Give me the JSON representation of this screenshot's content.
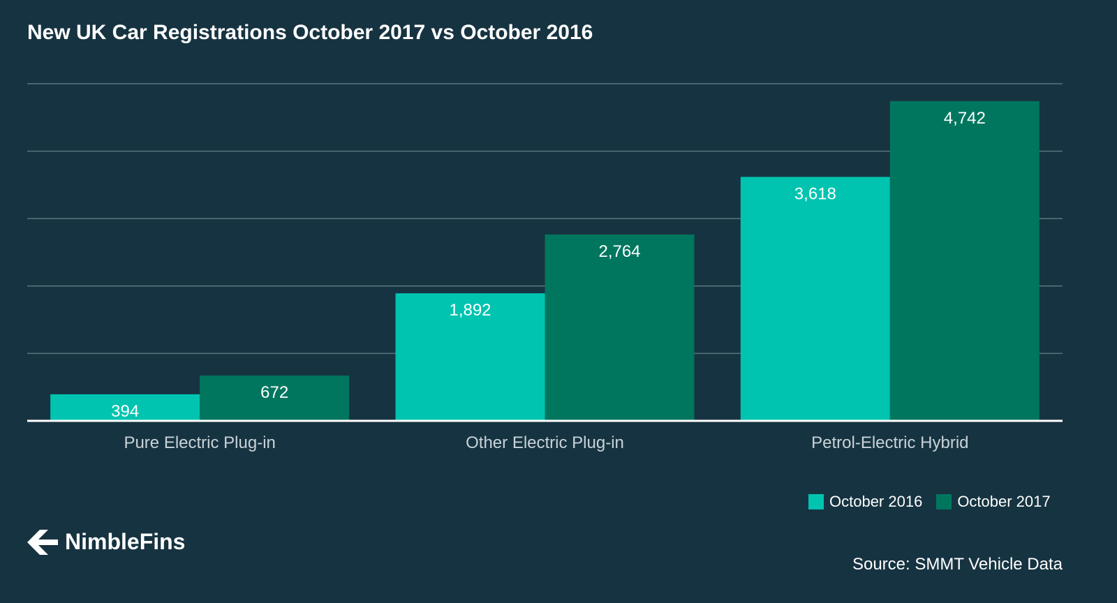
{
  "chart_data": {
    "type": "bar",
    "title": "New UK Car Registrations October 2017 vs October 2016",
    "categories": [
      "Pure Electric Plug-in",
      "Other Electric Plug-in",
      "Petrol-Electric Hybrid"
    ],
    "series": [
      {
        "name": "October 2016",
        "values": [
          394,
          1892,
          3618
        ],
        "labels": [
          "394",
          "1,892",
          "3,618"
        ],
        "color": "#00c4b0"
      },
      {
        "name": "October 2017",
        "values": [
          672,
          2764,
          4742
        ],
        "labels": [
          "672",
          "2,764",
          "4,742"
        ],
        "color": "#00765f"
      }
    ],
    "ylim": [
      0,
      5000
    ],
    "grid": true,
    "legend": "bottom-right"
  },
  "colors": {
    "background": "#163341",
    "gridline": "#5a7480",
    "axis": "#ffffff",
    "category_label": "#c9d3d8"
  },
  "brand": {
    "name": "NimbleFins",
    "icon": "nimblefins-arrow-logo"
  },
  "source": "Source: SMMT Vehicle Data"
}
